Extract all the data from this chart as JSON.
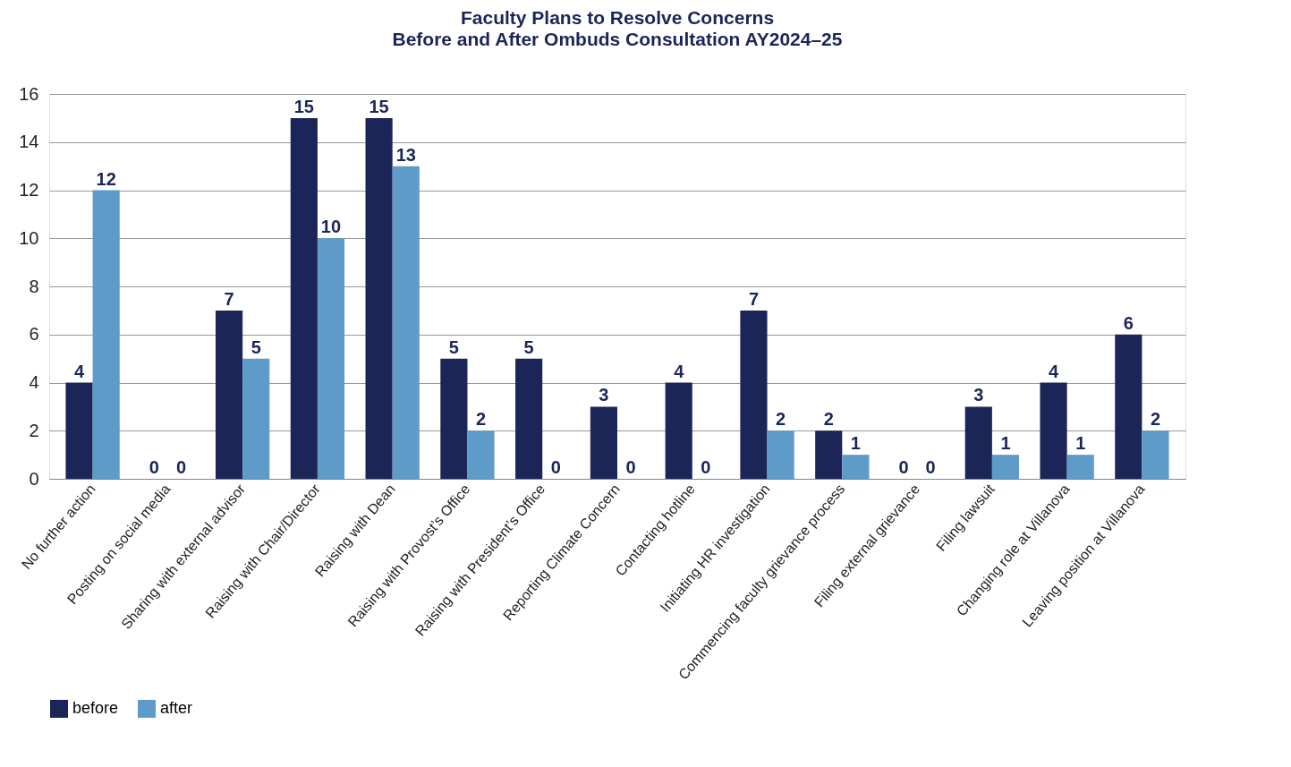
{
  "chart_data": {
    "type": "bar",
    "title": "Faculty Plans to Resolve Concerns",
    "subtitle": "Before and After Ombuds Consultation AY2024–25",
    "categories": [
      "No further action",
      "Posting on social media",
      "Sharing with external advisor",
      "Raising with Chair/Director",
      "Raising with Dean",
      "Raising with Provost’s Office",
      "Raising with President’s Office",
      "Reporting Climate Concern",
      "Contacting hotline",
      "Initiating HR investigation",
      "Commencing faculty grievance process",
      "Filing external grievance",
      "Filing lawsuit",
      "Changing role at Villanova",
      "Leaving position at Villanova"
    ],
    "series": [
      {
        "name": "before",
        "color": "#1b2557",
        "values": [
          4,
          0,
          7,
          15,
          15,
          5,
          5,
          3,
          4,
          7,
          2,
          0,
          3,
          4,
          6
        ]
      },
      {
        "name": "after",
        "color": "#5f9bc9",
        "values": [
          12,
          0,
          5,
          10,
          13,
          2,
          0,
          0,
          0,
          2,
          1,
          0,
          1,
          1,
          2
        ]
      }
    ],
    "ylim": [
      0,
      16
    ],
    "yticks": [
      0,
      2,
      4,
      6,
      8,
      10,
      12,
      14,
      16
    ],
    "grid": "y",
    "legend": "bottom left",
    "data_labels": true
  }
}
